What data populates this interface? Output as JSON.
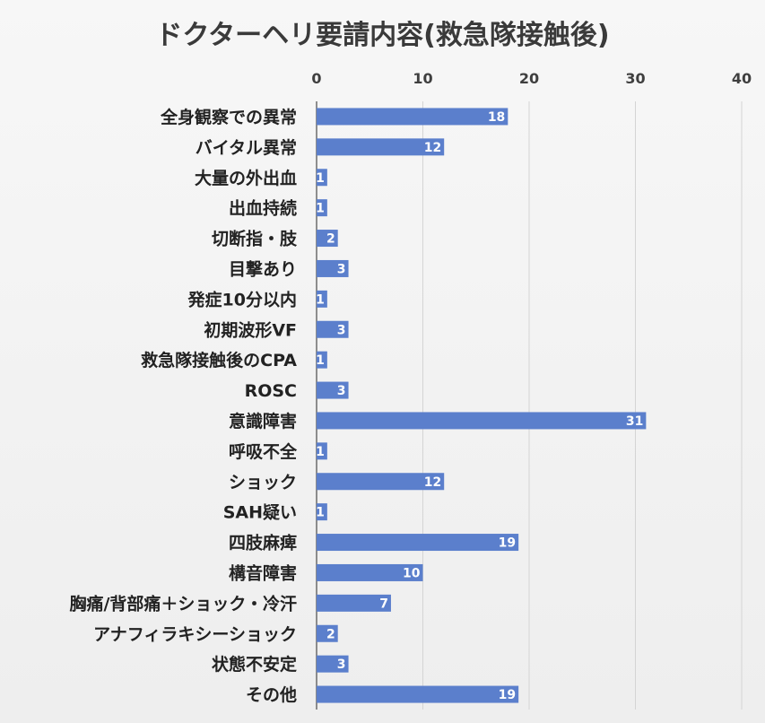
{
  "title": "ドクターヘリ要請内容(救急隊接触後)",
  "chart_data": {
    "type": "bar",
    "orientation": "horizontal",
    "title": "ドクターヘリ要請内容(救急隊接触後)",
    "categories": [
      "全身観察での異常",
      "バイタル異常",
      "大量の外出血",
      "出血持続",
      "切断指・肢",
      "目撃あり",
      "発症10分以内",
      "初期波形VF",
      "救急隊接触後のCPA",
      "ROSC",
      "意識障害",
      "呼吸不全",
      "ショック",
      "SAH疑い",
      "四肢麻痺",
      "構音障害",
      "胸痛/背部痛＋ショック・冷汗",
      "アナフィラキシーショック",
      "状態不安定",
      "その他"
    ],
    "values": [
      18,
      12,
      1,
      1,
      2,
      3,
      1,
      3,
      1,
      3,
      31,
      1,
      12,
      1,
      19,
      10,
      7,
      2,
      3,
      19
    ],
    "xlim": [
      0,
      40
    ],
    "xticks": [
      0,
      10,
      20,
      30,
      40
    ],
    "axis_position": "top",
    "grid": true,
    "legend": "none",
    "bar_color": "#5b7fcc",
    "data_labels": true
  }
}
